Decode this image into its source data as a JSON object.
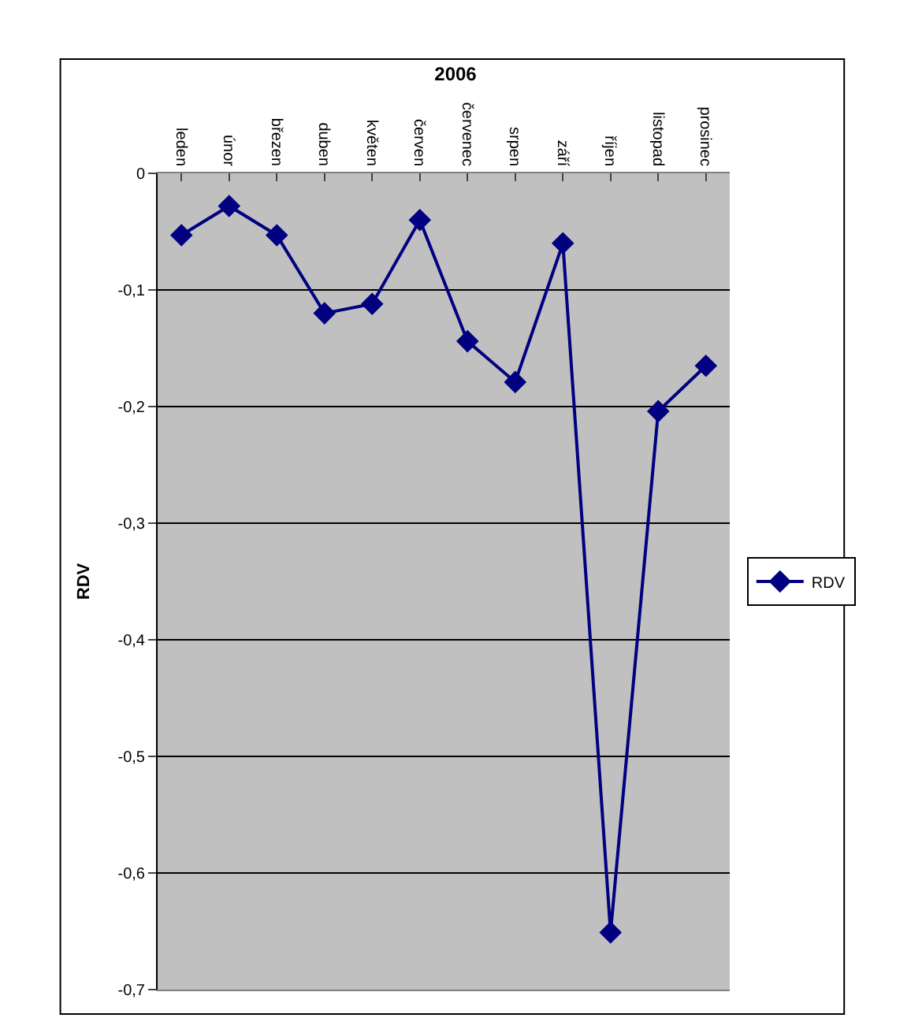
{
  "chart_data": {
    "type": "line",
    "title": "2006",
    "ylabel": "RDV",
    "categories": [
      "leden",
      "únor",
      "březen",
      "duben",
      "květen",
      "červen",
      "červenec",
      "srpen",
      "září",
      "říjen",
      "listopad",
      "prosinec"
    ],
    "series": [
      {
        "name": "RDV",
        "color": "#000080",
        "values": [
          -0.053,
          -0.028,
          -0.053,
          -0.12,
          -0.112,
          -0.04,
          -0.144,
          -0.179,
          -0.06,
          -0.651,
          -0.204,
          -0.165
        ]
      }
    ],
    "ylim": [
      -0.7,
      0
    ],
    "yticks": [
      {
        "value": 0,
        "label": "0"
      },
      {
        "value": -0.1,
        "label": "-0,1"
      },
      {
        "value": -0.2,
        "label": "-0,2"
      },
      {
        "value": -0.3,
        "label": "-0,3"
      },
      {
        "value": -0.4,
        "label": "-0,4"
      },
      {
        "value": -0.5,
        "label": "-0,5"
      },
      {
        "value": -0.6,
        "label": "-0,6"
      },
      {
        "value": -0.7,
        "label": "-0,7"
      }
    ],
    "grid": "y",
    "legend": "right",
    "marker": "diamond",
    "line_style": "solid"
  }
}
